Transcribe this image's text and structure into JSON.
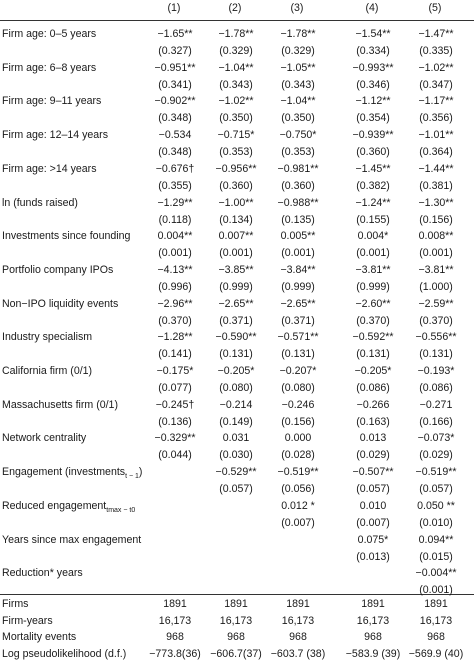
{
  "columns": [
    "(1)",
    "(2)",
    "(3)",
    "(4)",
    "(5)"
  ],
  "rows": [
    {
      "label": "Firm age: 0–5 years",
      "coef": [
        "−1.65**",
        "−1.78**",
        "−1.78**",
        "−1.54**",
        "−1.47**"
      ],
      "se": [
        "(0.327)",
        "(0.329)",
        "(0.329)",
        "(0.334)",
        "(0.335)"
      ]
    },
    {
      "label": "Firm age: 6–8 years",
      "coef": [
        "−0.951**",
        "−1.04**",
        "−1.05**",
        "−0.993**",
        "−1.02**"
      ],
      "se": [
        "(0.341)",
        "(0.343)",
        "(0.343)",
        "(0.346)",
        "(0.347)"
      ]
    },
    {
      "label": "Firm age: 9–11 years",
      "coef": [
        "−0.902**",
        "−1.02**",
        "−1.04**",
        "−1.12**",
        "−1.17**"
      ],
      "se": [
        "(0.348)",
        "(0.350)",
        "(0.350)",
        "(0.354)",
        "(0.356)"
      ]
    },
    {
      "label": "Firm age: 12–14 years",
      "coef": [
        "−0.534",
        "−0.715*",
        "−0.750*",
        "−0.939**",
        "−1.01**"
      ],
      "se": [
        "(0.348)",
        "(0.353)",
        "(0.353)",
        "(0.360)",
        "(0.364)"
      ]
    },
    {
      "label": "Firm age: >14 years",
      "coef": [
        "−0.676†",
        "−0.956**",
        "−0.981**",
        "−1.45**",
        "−1.44**"
      ],
      "se": [
        "(0.355)",
        "(0.360)",
        "(0.360)",
        "(0.382)",
        "(0.381)"
      ]
    },
    {
      "label": "ln (funds raised)",
      "coef": [
        "−1.29**",
        "−1.00**",
        "−0.988**",
        "−1.24**",
        "−1.30**"
      ],
      "se": [
        "(0.118)",
        "(0.134)",
        "(0.135)",
        "(0.155)",
        "(0.156)"
      ]
    },
    {
      "label": "Investments since founding",
      "coef": [
        "0.004**",
        "0.007**",
        "0.005**",
        "0.004*",
        "0.008**"
      ],
      "se": [
        "(0.001)",
        "(0.001)",
        "(0.001)",
        "(0.001)",
        "(0.001)"
      ]
    },
    {
      "label": "Portfolio company IPOs",
      "coef": [
        "−4.13**",
        "−3.85**",
        "−3.84**",
        "−3.81**",
        "−3.81**"
      ],
      "se": [
        "(0.996)",
        "(0.999)",
        "(0.999)",
        "(0.999)",
        "(1.000)"
      ]
    },
    {
      "label": "Non−IPO liquidity events",
      "coef": [
        "−2.96**",
        "−2.65**",
        "−2.65**",
        "−2.60**",
        "−2.59**"
      ],
      "se": [
        "(0.370)",
        "(0.371)",
        "(0.371)",
        "(0.370)",
        "(0.370)"
      ]
    },
    {
      "label": "Industry specialism",
      "coef": [
        "−1.28**",
        "−0.590**",
        "−0.571**",
        "−0.592**",
        "−0.556**"
      ],
      "se": [
        "(0.141)",
        "(0.131)",
        "(0.131)",
        "(0.131)",
        "(0.131)"
      ]
    },
    {
      "label": "California firm (0/1)",
      "coef": [
        "−0.175*",
        "−0.205*",
        "−0.207*",
        "−0.205*",
        "−0.193*"
      ],
      "se": [
        "(0.077)",
        "(0.080)",
        "(0.080)",
        "(0.086)",
        "(0.086)"
      ]
    },
    {
      "label": "Massachusetts firm (0/1)",
      "coef": [
        "−0.245†",
        "−0.214",
        "−0.246",
        "−0.266",
        "−0.271"
      ],
      "se": [
        "(0.136)",
        "(0.149)",
        "(0.156)",
        "(0.163)",
        "(0.166)"
      ]
    },
    {
      "label": "Network centrality",
      "coef": [
        "−0.329**",
        "0.031",
        "0.000",
        "0.013",
        "−0.073*"
      ],
      "se": [
        "(0.044)",
        "(0.030)",
        "(0.028)",
        "(0.029)",
        "(0.029)"
      ]
    },
    {
      "label": "Engagement (investments",
      "label_sub": "t − 1",
      "label_tail": ")",
      "coef": [
        "",
        "−0.529**",
        "−0.519**",
        "−0.507**",
        "−0.519**"
      ],
      "se": [
        "",
        "(0.057)",
        "(0.056)",
        "(0.057)",
        "(0.057)"
      ]
    },
    {
      "label": "Reduced engagement",
      "label_sub": "tmax − t0",
      "label_tail": "",
      "coef": [
        "",
        "",
        "0.012 *",
        "0.010",
        "0.050 **"
      ],
      "se": [
        "",
        "",
        "(0.007)",
        "(0.007)",
        "(0.010)"
      ]
    },
    {
      "label": "Years since max engagement",
      "coef": [
        "",
        "",
        "",
        "0.075*",
        "0.094**"
      ],
      "se": [
        "",
        "",
        "",
        "(0.013)",
        "(0.015)"
      ]
    },
    {
      "label": "Reduction* years",
      "coef": [
        "",
        "",
        "",
        "",
        "−0.004**"
      ],
      "se": [
        "",
        "",
        "",
        "",
        "(0.001)"
      ]
    }
  ],
  "stats": [
    {
      "label": "Firms",
      "values": [
        "1891",
        "1891",
        "1891",
        "1891",
        "1891"
      ]
    },
    {
      "label": "Firm-years",
      "values": [
        "16,173",
        "16,173",
        "16,173",
        "16,173",
        "16,173"
      ]
    },
    {
      "label": "Mortality events",
      "values": [
        "968",
        "968",
        "968",
        "968",
        "968"
      ]
    },
    {
      "label": "Log pseudolikelihood (d.f.)",
      "values": [
        "−773.8(36)",
        "−606.7(37)",
        "−603.7 (38)",
        "−583.9 (39)",
        "−569.9 (40)"
      ]
    }
  ]
}
